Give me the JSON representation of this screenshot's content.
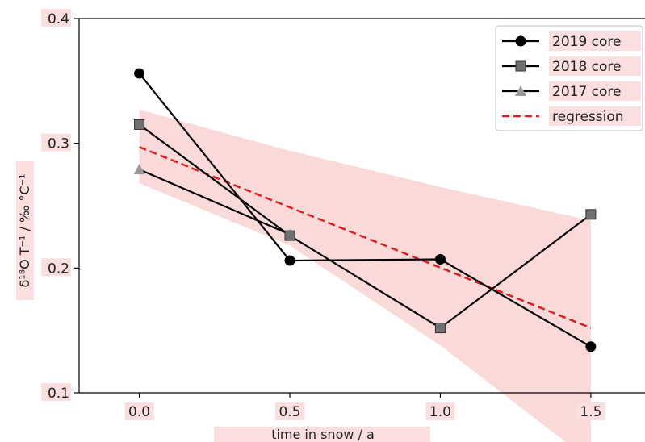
{
  "chart_data": {
    "type": "line",
    "xlabel": "time in snow / a",
    "ylabel": "δ¹⁸O T⁻¹ / ‰ °C⁻¹",
    "xlim": [
      -0.2,
      1.68
    ],
    "ylim": [
      0.1,
      0.4
    ],
    "xticks": [
      "0.0",
      "0.5",
      "1.0",
      "1.5"
    ],
    "xtick_values": [
      0.0,
      0.5,
      1.0,
      1.5
    ],
    "yticks": [
      "0.1",
      "0.2",
      "0.3",
      "0.4"
    ],
    "ytick_values": [
      0.1,
      0.2,
      0.3,
      0.4
    ],
    "grid": false,
    "legend_position": "top-right",
    "x": [
      0.0,
      0.5,
      1.0,
      1.5
    ],
    "series": [
      {
        "name": "2019 core",
        "values": [
          0.356,
          0.206,
          0.207,
          0.137
        ],
        "marker": "circle",
        "color": "#000000"
      },
      {
        "name": "2018 core",
        "values": [
          0.315,
          0.226,
          0.152,
          0.243
        ],
        "marker": "square",
        "color": "#000000",
        "marker_color": "#707070"
      },
      {
        "name": "2017 core",
        "values": [
          0.279,
          0.227,
          null,
          null
        ],
        "marker": "triangle",
        "color": "#000000",
        "marker_color": "#9a9a9a"
      },
      {
        "name": "regression",
        "x": [
          0.0,
          1.5
        ],
        "values": [
          0.297,
          0.152
        ],
        "style": "dashed",
        "color": "#dd1f1f"
      }
    ],
    "confidence_band": {
      "x": [
        0.0,
        0.5,
        1.0,
        1.5
      ],
      "upper": [
        0.327,
        0.294,
        0.265,
        0.238
      ],
      "lower": [
        0.268,
        0.218,
        0.138,
        0.045
      ],
      "color": "#f8c9c9"
    },
    "highlight_color": "#fbdede"
  }
}
